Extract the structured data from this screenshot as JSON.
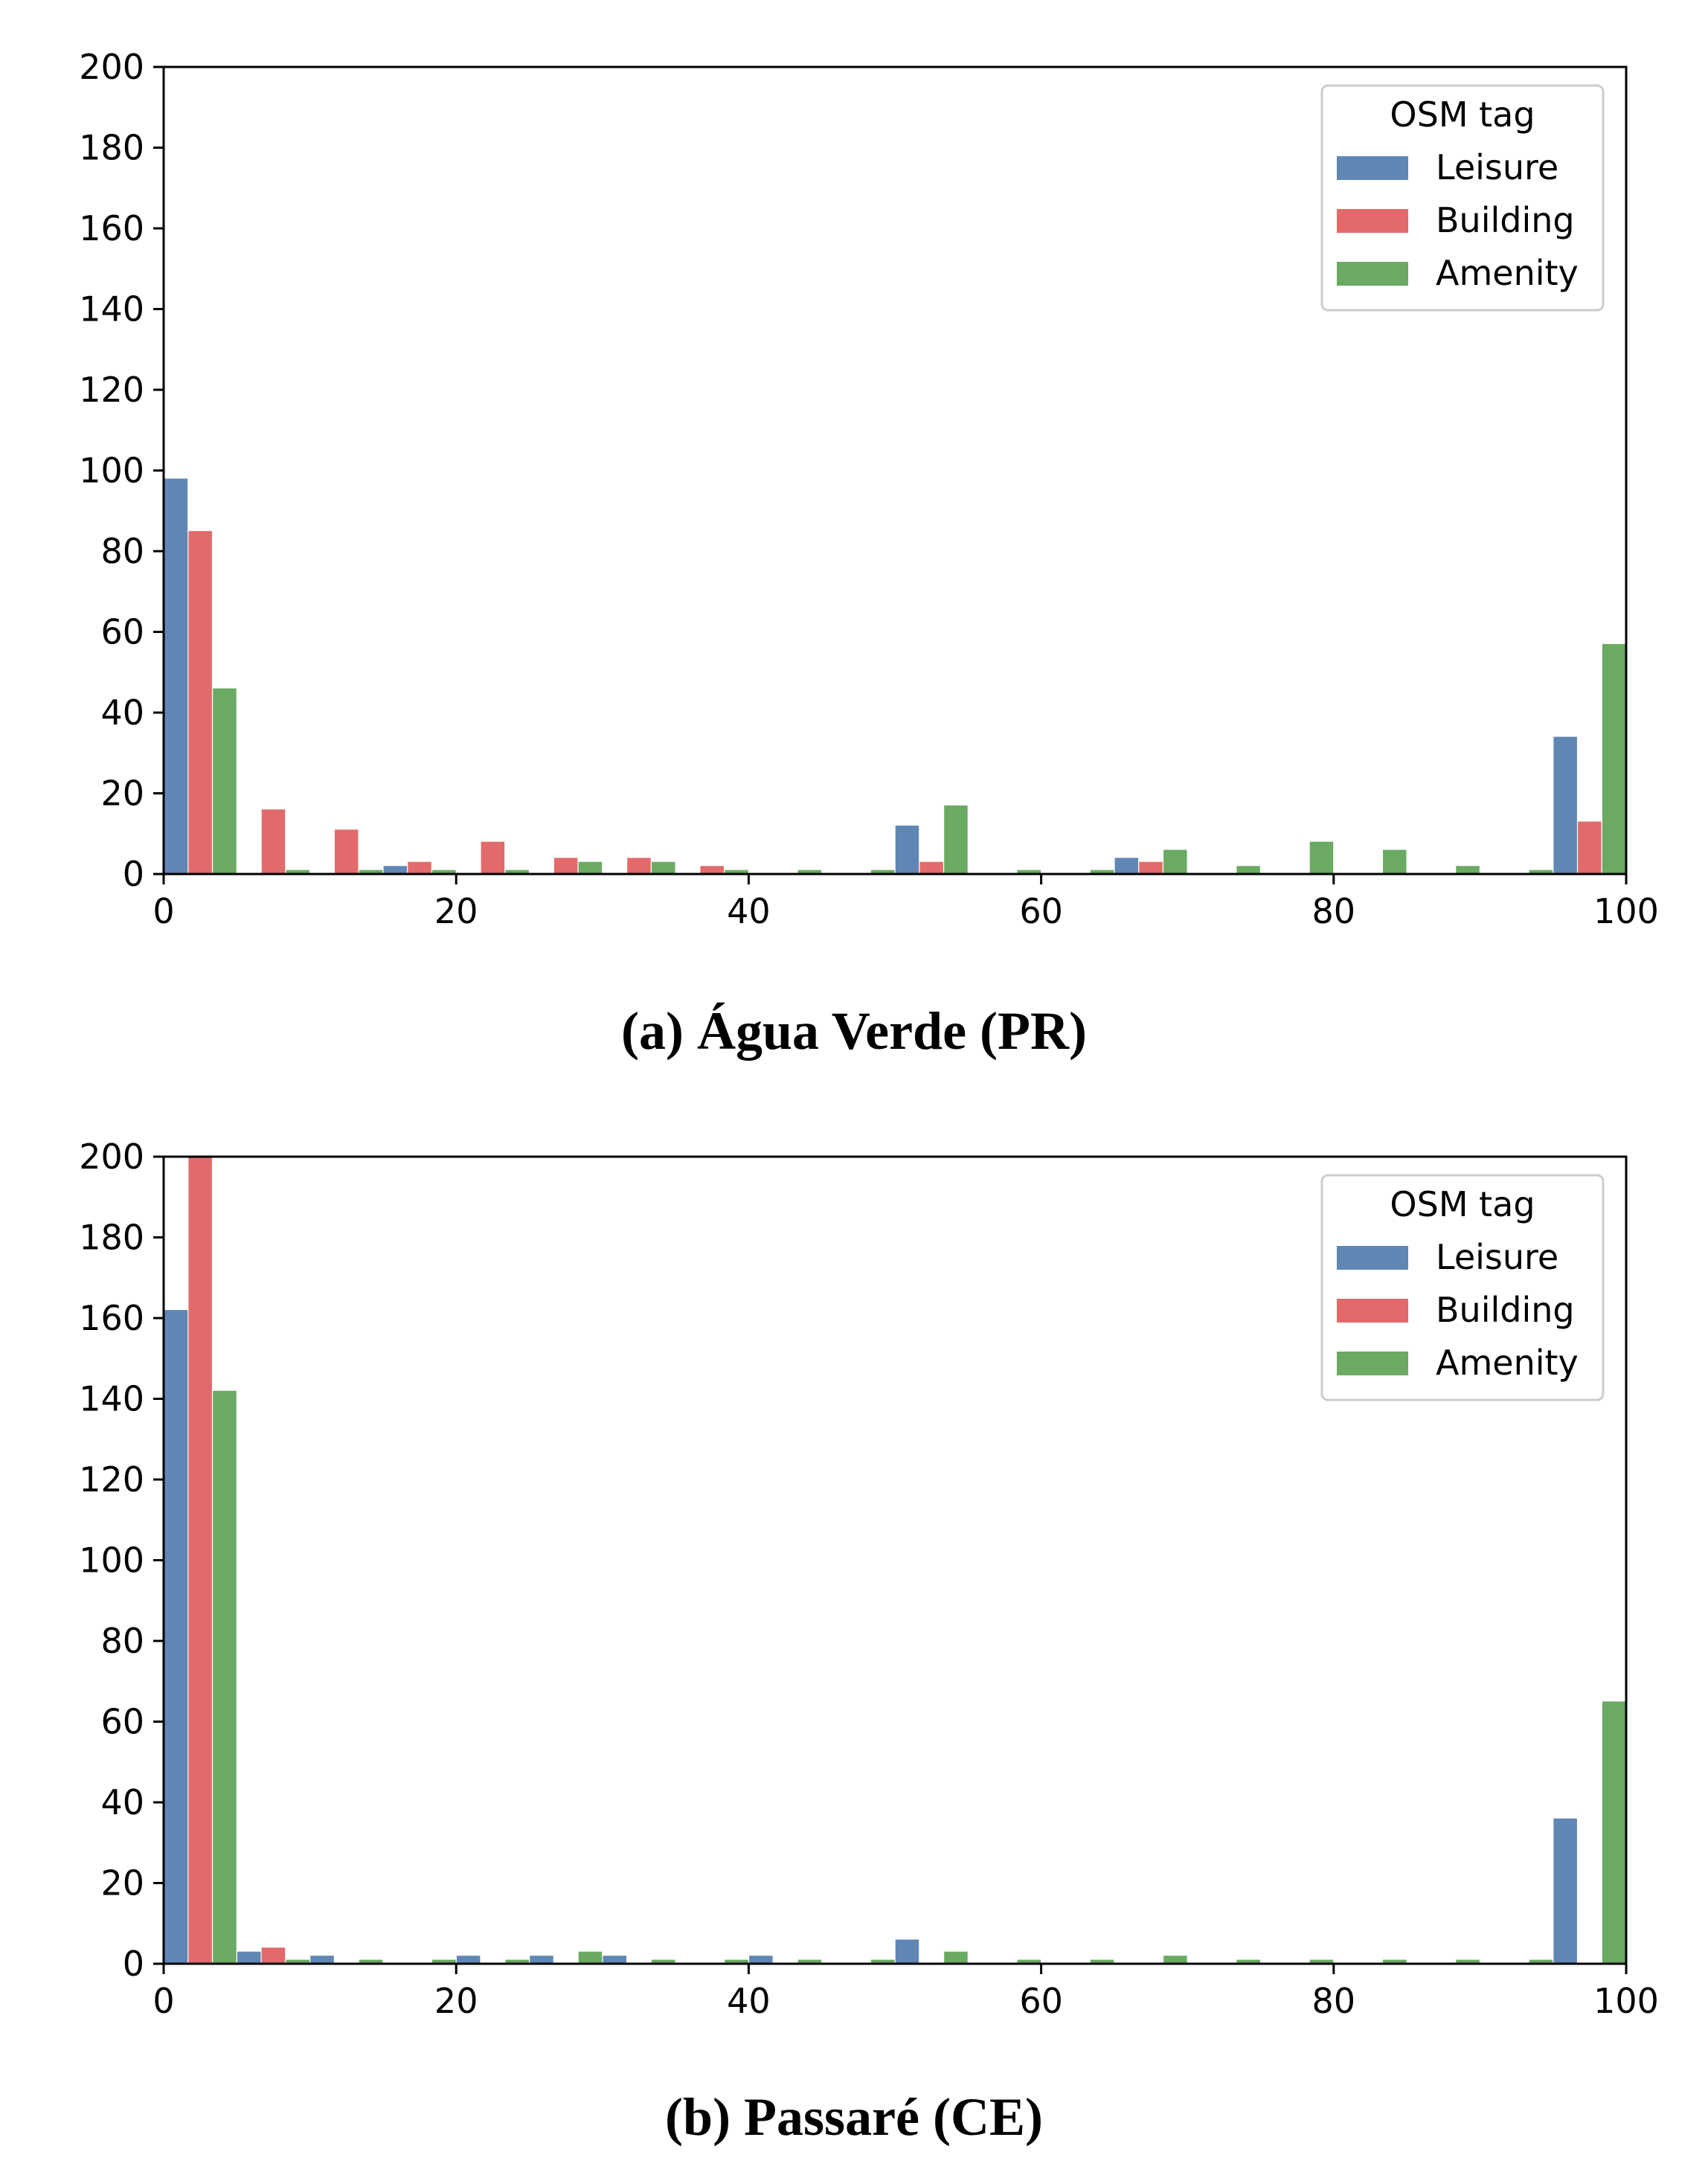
{
  "colors": {
    "Leisure": "#6087b4",
    "Building": "#e36a6a",
    "Amenity": "#6aaa62"
  },
  "chart_data": [
    {
      "type": "bar",
      "title": "",
      "caption": "(a) Água Verde (PR)",
      "xlabel": "",
      "ylabel": "",
      "xlim": [
        0,
        100
      ],
      "ylim": [
        0,
        200
      ],
      "xticks": [
        "0",
        "20",
        "40",
        "60",
        "80",
        "100"
      ],
      "yticks": [
        "0",
        "20",
        "40",
        "60",
        "80",
        "100",
        "120",
        "140",
        "160",
        "180",
        "200"
      ],
      "bin_width": 5,
      "legend": {
        "title": "OSM tag",
        "position": "top-right",
        "entries": [
          "Leisure",
          "Building",
          "Amenity"
        ]
      },
      "bins": [
        0,
        5,
        10,
        15,
        20,
        25,
        30,
        35,
        40,
        45,
        50,
        55,
        60,
        65,
        70,
        75,
        80,
        85,
        90,
        95
      ],
      "series": [
        {
          "name": "Leisure",
          "values": [
            98,
            0,
            0,
            2,
            0,
            0,
            0,
            0,
            0,
            0,
            12,
            0,
            0,
            4,
            0,
            0,
            0,
            0,
            0,
            34
          ]
        },
        {
          "name": "Building",
          "values": [
            85,
            16,
            11,
            3,
            8,
            4,
            4,
            2,
            0,
            0,
            3,
            0,
            0,
            3,
            0,
            0,
            0,
            0,
            0,
            13
          ]
        },
        {
          "name": "Amenity",
          "values": [
            46,
            1,
            1,
            1,
            1,
            3,
            3,
            1,
            1,
            1,
            17,
            1,
            1,
            6,
            2,
            8,
            6,
            2,
            1,
            57
          ]
        }
      ]
    },
    {
      "type": "bar",
      "title": "",
      "caption": "(b) Passaré (CE)",
      "xlabel": "",
      "ylabel": "",
      "xlim": [
        0,
        100
      ],
      "ylim": [
        0,
        200
      ],
      "xticks": [
        "0",
        "20",
        "40",
        "60",
        "80",
        "100"
      ],
      "yticks": [
        "0",
        "20",
        "40",
        "60",
        "80",
        "100",
        "120",
        "140",
        "160",
        "180",
        "200"
      ],
      "bin_width": 5,
      "legend": {
        "title": "OSM tag",
        "position": "top-right",
        "entries": [
          "Leisure",
          "Building",
          "Amenity"
        ]
      },
      "bins": [
        0,
        5,
        10,
        15,
        20,
        25,
        30,
        35,
        40,
        45,
        50,
        55,
        60,
        65,
        70,
        75,
        80,
        85,
        90,
        95
      ],
      "series": [
        {
          "name": "Leisure",
          "values": [
            162,
            3,
            2,
            0,
            2,
            2,
            2,
            0,
            2,
            0,
            6,
            0,
            0,
            0,
            0,
            0,
            0,
            0,
            0,
            36
          ]
        },
        {
          "name": "Building",
          "values": [
            200,
            4,
            0,
            0,
            0,
            0,
            0,
            0,
            0,
            0,
            0,
            0,
            0,
            0,
            0,
            0,
            0,
            0,
            0,
            0
          ]
        },
        {
          "name": "Amenity",
          "values": [
            142,
            1,
            1,
            1,
            1,
            3,
            1,
            1,
            1,
            1,
            3,
            1,
            1,
            2,
            1,
            1,
            1,
            1,
            1,
            65
          ]
        }
      ]
    }
  ]
}
